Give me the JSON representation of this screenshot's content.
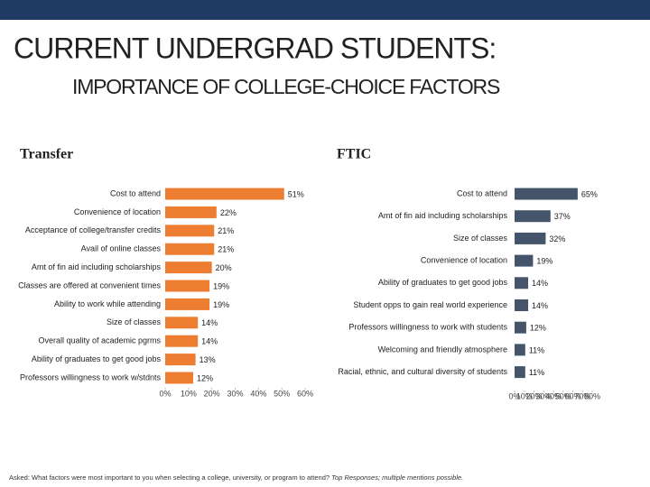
{
  "header": {
    "title": "CURRENT UNDERGRAD STUDENTS:",
    "subtitle": "IMPORTANCE OF COLLEGE-CHOICE FACTORS"
  },
  "footnote": {
    "text": "Asked: What factors were most important to you when selecting a college, university, or program to attend?",
    "note": "Top Responses; multiple mentions possible."
  },
  "chart_data": [
    {
      "type": "bar",
      "horizontal": true,
      "title": "Transfer",
      "color": "#ed7d31",
      "categories": [
        "Cost to attend",
        "Convenience of location",
        "Acceptance of college/transfer credits",
        "Avail of online classes",
        "Amt of fin aid including scholarships",
        "Classes are offered at convenient times",
        "Ability to work while attending",
        "Size of classes",
        "Overall quality of academic pgrms",
        "Ability of graduates to get good jobs",
        "Professors willingness to work w/stdnts"
      ],
      "values": [
        51,
        22,
        21,
        21,
        20,
        19,
        19,
        14,
        14,
        13,
        12
      ],
      "value_labels": [
        "51%",
        "22%",
        "21%",
        "21%",
        "20%",
        "19%",
        "19%",
        "14%",
        "14%",
        "13%",
        "12%"
      ],
      "xlim": [
        0,
        60
      ],
      "xticks": [
        {
          "value": 0,
          "label": "0%"
        },
        {
          "value": 10,
          "label": "10%"
        },
        {
          "value": 20,
          "label": "20%"
        },
        {
          "value": 30,
          "label": "30%"
        },
        {
          "value": 40,
          "label": "40%"
        },
        {
          "value": 50,
          "label": "50%"
        },
        {
          "value": 60,
          "label": "60%"
        }
      ]
    },
    {
      "type": "bar",
      "horizontal": true,
      "title": "FTIC",
      "color": "#44546a",
      "categories": [
        "Cost to attend",
        "Amt of fin aid including scholarships",
        "Size of classes",
        "Convenience of location",
        "Ability of graduates to get good jobs",
        "Student opps to gain real world experience",
        "Professors willingness to work with students",
        "Welcoming and friendly atmosphere",
        "Racial, ethnic, and cultural diversity of students"
      ],
      "values": [
        65,
        37,
        32,
        19,
        14,
        14,
        12,
        11,
        11
      ],
      "value_labels": [
        "65%",
        "37%",
        "32%",
        "19%",
        "14%",
        "14%",
        "12%",
        "11%",
        "11%"
      ],
      "xlim": [
        0,
        80
      ],
      "xticks": [
        {
          "value": 0,
          "label": "0%"
        },
        {
          "value": 10,
          "label": "10%"
        },
        {
          "value": 20,
          "label": "20%"
        },
        {
          "value": 30,
          "label": "30%"
        },
        {
          "value": 40,
          "label": "40%"
        },
        {
          "value": 50,
          "label": "50%"
        },
        {
          "value": 60,
          "label": "60%"
        },
        {
          "value": 70,
          "label": "70%"
        },
        {
          "value": 80,
          "label": "80%"
        }
      ]
    }
  ]
}
